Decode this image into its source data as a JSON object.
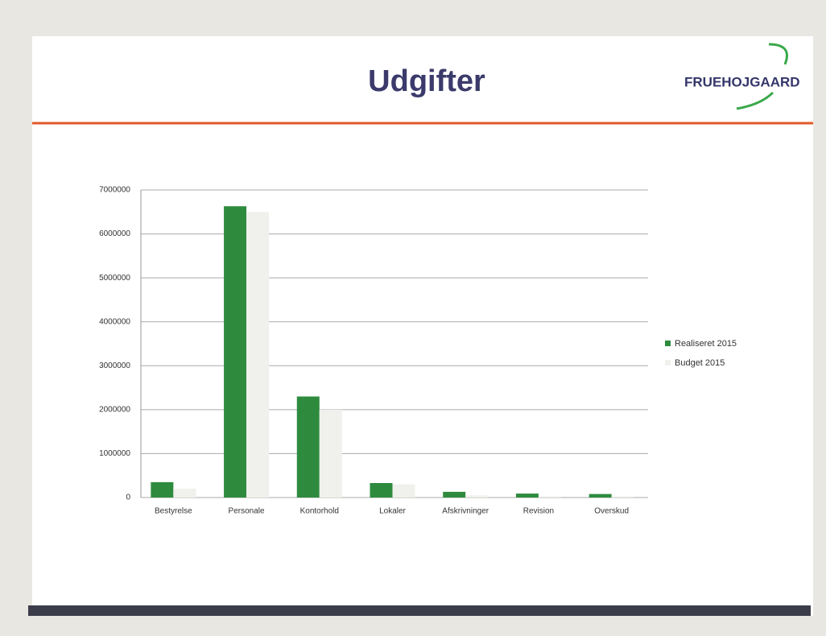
{
  "header": {
    "title": "Udgifter",
    "logo": "FRUEHOJGAARD"
  },
  "chart_data": {
    "type": "bar",
    "categories": [
      "Bestyrelse",
      "Personale",
      "Kontorhold",
      "Lokaler",
      "Afskrivninger",
      "Revision",
      "Overskud"
    ],
    "series": [
      {
        "name": "Realiseret 2015",
        "color": "#2e8b3e",
        "values": [
          350000,
          6630000,
          2300000,
          330000,
          130000,
          90000,
          80000
        ]
      },
      {
        "name": "Budget 2015",
        "color": "#f0f0ec",
        "values": [
          200000,
          6500000,
          2000000,
          300000,
          50000,
          30000,
          30000
        ]
      }
    ],
    "ylim": [
      0,
      7000000
    ],
    "yticks": [
      0,
      1000000,
      2000000,
      3000000,
      4000000,
      5000000,
      6000000,
      7000000
    ],
    "grid": true,
    "legend": "right"
  }
}
